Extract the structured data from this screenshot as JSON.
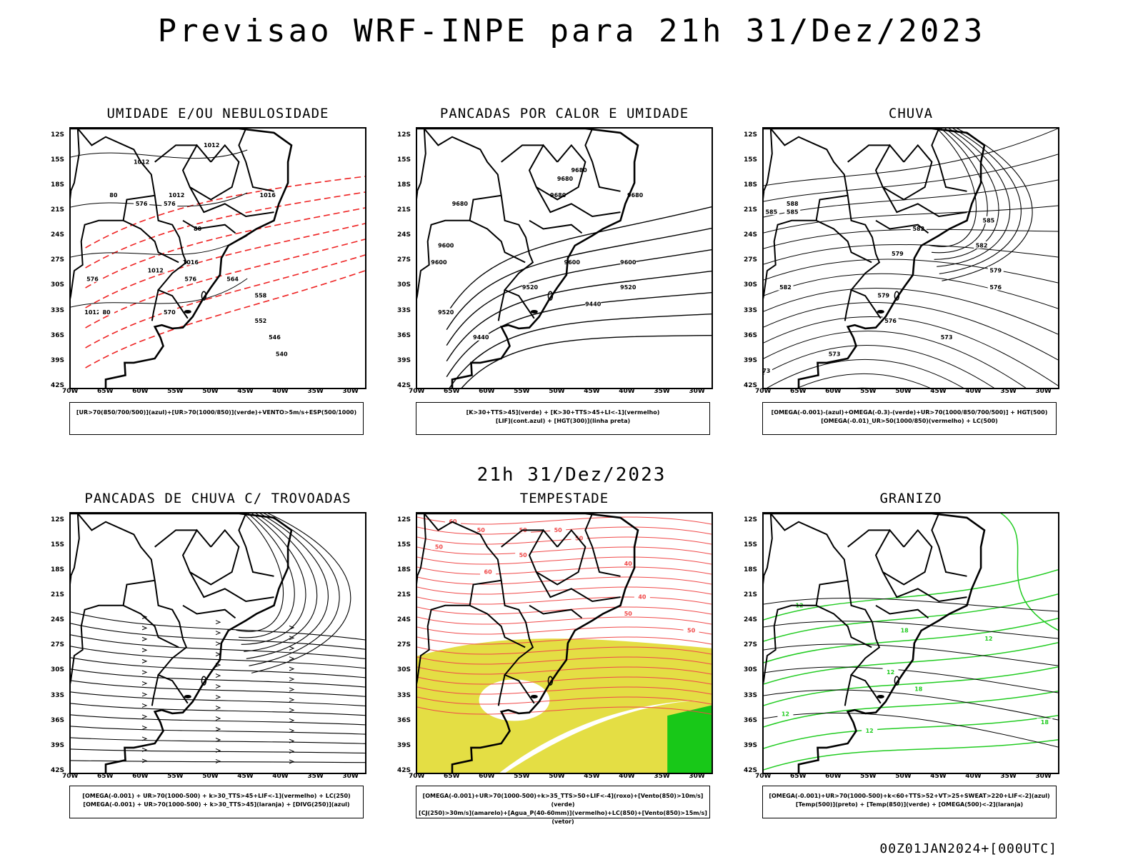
{
  "title": "Previsao WRF-INPE  para 21h 31/Dez/2023",
  "middle_title": "21h 31/Dez/2023",
  "footer": "00Z01JAN2024+[000UTC]",
  "latitude_labels": [
    "12S",
    "15S",
    "18S",
    "21S",
    "24S",
    "27S",
    "30S",
    "33S",
    "36S",
    "39S",
    "42S"
  ],
  "longitude_labels": [
    "70W",
    "65W",
    "60W",
    "55W",
    "50W",
    "45W",
    "40W",
    "35W",
    "30W"
  ],
  "panels": [
    {
      "title": "UMIDADE E/OU NEBULOSIDADE",
      "legend": [
        "[UR>70(850/700/500)](azul)+[UR>70(1000/850)](verde)+VENTO>5m/s+ESP(500/1000)"
      ],
      "contour_labels": [
        "1012",
        "1012",
        "1012",
        "1016",
        "1016",
        "1016",
        "1012",
        "1012",
        "576",
        "576",
        "576",
        "576",
        "570",
        "564",
        "558",
        "552",
        "546",
        "540",
        "80",
        "80",
        "80"
      ]
    },
    {
      "title": "PANCADAS POR CALOR E UMIDADE",
      "legend": [
        "[K>30+TTS>45](verde) + [K>30+TTS>45+LI<-1](vermelho)",
        "[LIF](cont.azul) + [HGT(300)](linha preta)"
      ],
      "contour_labels": [
        "9680",
        "9680",
        "9680",
        "9680",
        "9680",
        "9600",
        "9600",
        "9600",
        "9600",
        "9520",
        "9520",
        "9520",
        "9440",
        "9440"
      ]
    },
    {
      "title": "CHUVA",
      "legend": [
        "[OMEGA(-0.001)-(azul)+OMEGA(-0.3)-(verde)+UR>70(1000/850/700/500)] + HGT(500)",
        "[OMEGA(-0.01)_UR>50(1000/850)(vermelho) + LC(500)"
      ],
      "contour_labels": [
        "588",
        "585",
        "585",
        "585",
        "582",
        "582",
        "582",
        "579",
        "579",
        "579",
        "576",
        "576",
        "573",
        "573",
        "573"
      ]
    },
    {
      "title": "PANCADAS DE CHUVA C/ TROVOADAS",
      "legend": [
        "[OMEGA(-0.001) + UR>70(1000-500) + k>30_TTS>45+LIF<-1](vermelho) + LC(250)",
        "[OMEGA(-0.001) + UR>70(1000-500) + k>30_TTS>45](laranja) + [DIVG(250)](azul)"
      ],
      "contour_labels": []
    },
    {
      "title": "TEMPESTADE",
      "legend": [
        "[OMEGA(-0.001)+UR>70(1000-500)+k>35_TTS>50+LIF<-4](roxo)+[Vento(850)>10m/s](verde)",
        "[CJ(250)>30m/s](amarelo)+[Agua_P(40-60mm)](vermelho)+LC(850)+[Vento(850)>15m/s](vetor)"
      ],
      "contour_labels": [
        "60",
        "50",
        "50",
        "50",
        "50",
        "60",
        "50",
        "40",
        "40",
        "50",
        "50",
        "50"
      ]
    },
    {
      "title": "GRANIZO",
      "legend": [
        "[OMEGA(-0.001)+UR>70(1000-500)+k<60+TTS>52+VT>25+SWEAT>220+LIF<-2](azul)",
        "[Temp(500)](preto) + [Temp(850)](verde) + [OMEGA(500)<-2](laranja)"
      ],
      "contour_labels": [
        "12",
        "18",
        "12",
        "12",
        "12",
        "18",
        "18",
        "12"
      ]
    }
  ],
  "colors": {
    "coast": "#000000",
    "humidity_blue": "#9a9cf0",
    "humidity_green": "#22cc22",
    "thickness_red": "#ee2222",
    "rain_blue": "#1a3ee8",
    "storm_red": "#f04848",
    "instability_green": "#1d4d4a",
    "jet_yellow": "#e3dc3a",
    "wind_green": "#18c818",
    "orange": "#f07a1a",
    "contour_black": "#000000"
  }
}
